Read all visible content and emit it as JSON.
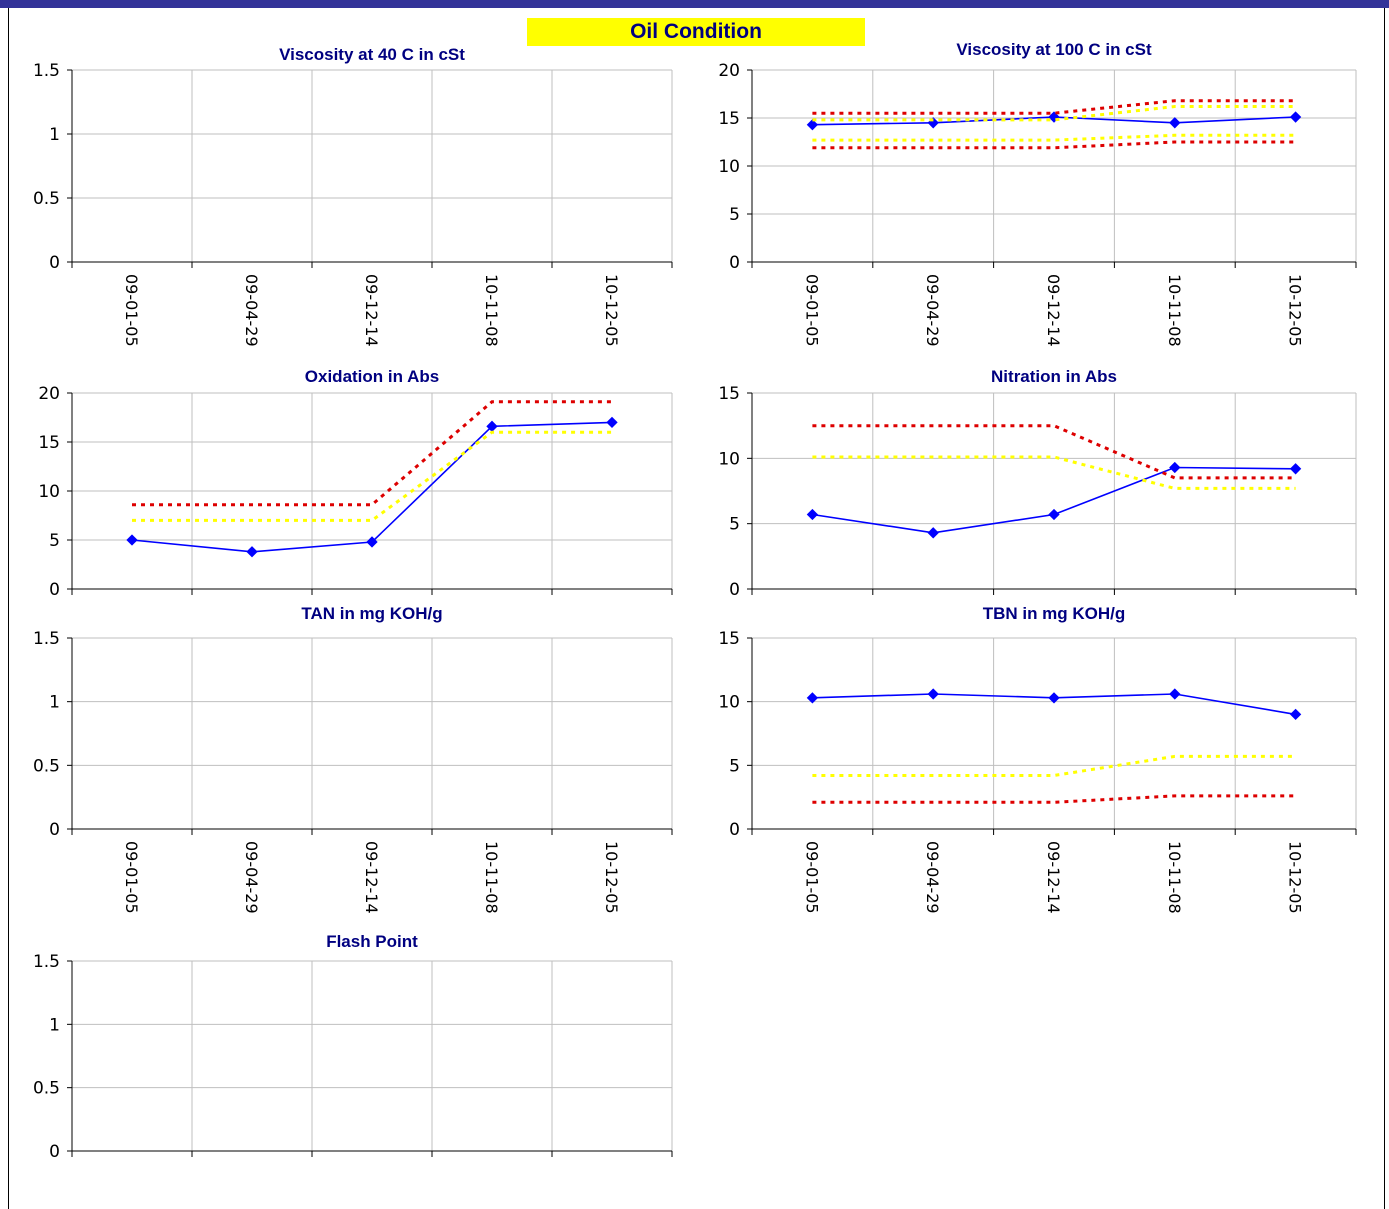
{
  "page": {
    "title": "Oil Condition"
  },
  "colors": {
    "header_bar": "#333399",
    "title_bg": "#ffff00",
    "title_text": "#000080",
    "measured": "#0000ff",
    "red_limit": "#dd0000",
    "yellow_limit": "#ffff00",
    "grid": "#bfbfbf"
  },
  "chart_data": [
    {
      "id": "visc40",
      "type": "line",
      "title": "Viscosity at 40 C in cSt",
      "categories": [
        "09-01-05",
        "09-04-29",
        "09-12-14",
        "10-11-08",
        "10-12-05"
      ],
      "yticks": [
        "0",
        "0.5",
        "1",
        "1.5"
      ],
      "ylim": [
        0,
        1.5
      ],
      "show_xlabels": true,
      "series": []
    },
    {
      "id": "visc100",
      "type": "line",
      "title": "Viscosity at 100 C in cSt",
      "categories": [
        "09-01-05",
        "09-04-29",
        "09-12-14",
        "10-11-08",
        "10-12-05"
      ],
      "yticks": [
        "0",
        "5",
        "10",
        "15",
        "20"
      ],
      "ylim": [
        0,
        20
      ],
      "show_xlabels": true,
      "series": [
        {
          "role": "measured",
          "values": [
            14.3,
            14.5,
            15.1,
            14.5,
            15.1
          ]
        },
        {
          "role": "red-limit",
          "values": [
            15.5,
            15.5,
            15.5,
            16.8,
            16.8
          ]
        },
        {
          "role": "yellow-limit",
          "values": [
            14.8,
            14.8,
            14.8,
            16.2,
            16.2
          ]
        },
        {
          "role": "yellow-limit",
          "values": [
            12.7,
            12.7,
            12.7,
            13.2,
            13.2
          ]
        },
        {
          "role": "red-limit",
          "values": [
            11.9,
            11.9,
            11.9,
            12.5,
            12.5
          ]
        }
      ]
    },
    {
      "id": "oxidation",
      "type": "line",
      "title": "Oxidation in Abs",
      "categories": [
        "09-01-05",
        "09-04-29",
        "09-12-14",
        "10-11-08",
        "10-12-05"
      ],
      "yticks": [
        "0",
        "5",
        "10",
        "15",
        "20"
      ],
      "ylim": [
        0,
        20
      ],
      "show_xlabels": false,
      "series": [
        {
          "role": "measured",
          "values": [
            5.0,
            3.8,
            4.8,
            16.6,
            17.0
          ]
        },
        {
          "role": "red-limit",
          "values": [
            8.6,
            8.6,
            8.6,
            19.1,
            19.1
          ]
        },
        {
          "role": "yellow-limit",
          "values": [
            7.0,
            7.0,
            7.0,
            16.0,
            16.0
          ]
        }
      ]
    },
    {
      "id": "nitration",
      "type": "line",
      "title": "Nitration in Abs",
      "categories": [
        "09-01-05",
        "09-04-29",
        "09-12-14",
        "10-11-08",
        "10-12-05"
      ],
      "yticks": [
        "0",
        "5",
        "10",
        "15"
      ],
      "ylim": [
        0,
        15
      ],
      "show_xlabels": false,
      "series": [
        {
          "role": "measured",
          "values": [
            5.7,
            4.3,
            5.7,
            9.3,
            9.2
          ]
        },
        {
          "role": "red-limit",
          "values": [
            12.5,
            12.5,
            12.5,
            8.5,
            8.5
          ]
        },
        {
          "role": "yellow-limit",
          "values": [
            10.1,
            10.1,
            10.1,
            7.7,
            7.7
          ]
        }
      ]
    },
    {
      "id": "tan",
      "type": "line",
      "title": "TAN in mg KOH/g",
      "categories": [
        "09-01-05",
        "09-04-29",
        "09-12-14",
        "10-11-08",
        "10-12-05"
      ],
      "yticks": [
        "0",
        "0.5",
        "1",
        "1.5"
      ],
      "ylim": [
        0,
        1.5
      ],
      "show_xlabels": true,
      "series": []
    },
    {
      "id": "tbn",
      "type": "line",
      "title": "TBN in mg KOH/g",
      "categories": [
        "09-01-05",
        "09-04-29",
        "09-12-14",
        "10-11-08",
        "10-12-05"
      ],
      "yticks": [
        "0",
        "5",
        "10",
        "15"
      ],
      "ylim": [
        0,
        15
      ],
      "show_xlabels": true,
      "series": [
        {
          "role": "measured",
          "values": [
            10.3,
            10.6,
            10.3,
            10.6,
            9.0
          ]
        },
        {
          "role": "yellow-limit",
          "values": [
            4.2,
            4.2,
            4.2,
            5.7,
            5.7
          ]
        },
        {
          "role": "red-limit",
          "values": [
            2.1,
            2.1,
            2.1,
            2.6,
            2.6
          ]
        }
      ]
    },
    {
      "id": "flash",
      "type": "line",
      "title": "Flash Point",
      "categories": [
        "09-01-05",
        "09-04-29",
        "09-12-14",
        "10-11-08",
        "10-12-05"
      ],
      "yticks": [
        "0",
        "0.5",
        "1",
        "1.5"
      ],
      "ylim": [
        0,
        1.5
      ],
      "show_xlabels": false,
      "series": []
    }
  ]
}
